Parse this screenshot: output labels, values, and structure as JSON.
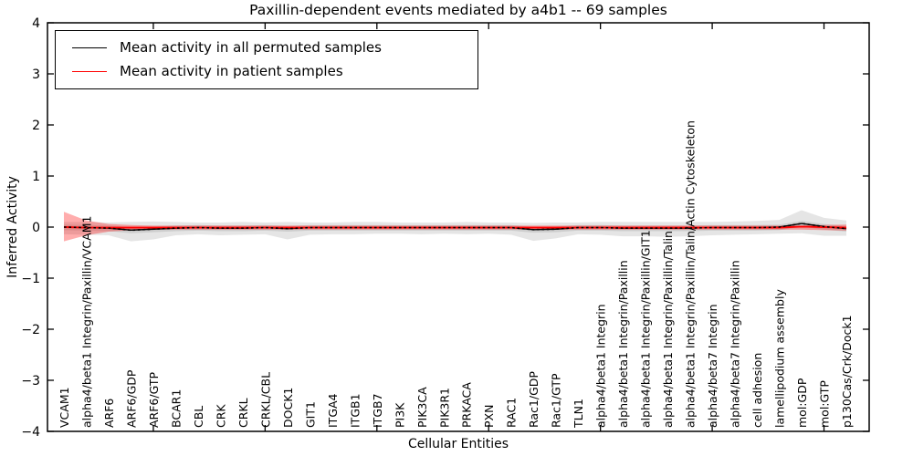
{
  "chart_data": {
    "type": "line",
    "title": "Paxillin-dependent events mediated by a4b1 -- 69 samples",
    "xlabel": "Cellular Entities",
    "ylabel": "Inferred Activity",
    "ylim": [
      -4,
      4
    ],
    "ytick_values": [
      4,
      3,
      2,
      1,
      0,
      -1,
      -2,
      -3,
      -4
    ],
    "ytick_labels": [
      "4",
      "3",
      "2",
      "1",
      "0",
      "−1",
      "−2",
      "−3",
      "−4"
    ],
    "xtick_indices": [
      4,
      9,
      14,
      19,
      24,
      29,
      34
    ],
    "grid": false,
    "legend_position": "upper-left",
    "legend": [
      {
        "label": "Mean activity in all permuted samples",
        "color": "#000000"
      },
      {
        "label": "Mean activity in patient samples",
        "color": "#ff0000"
      }
    ],
    "categories": [
      "VCAM1",
      "alpha4/beta1 Integrin/Paxillin/VCAM1",
      "ARF6",
      "ARF6/GDP",
      "ARF6/GTP",
      "BCAR1",
      "CBL",
      "CRK",
      "CRKL",
      "CRKL/CBL",
      "DOCK1",
      "GIT1",
      "ITGA4",
      "ITGB1",
      "ITGB7",
      "PI3K",
      "PIK3CA",
      "PIK3R1",
      "PRKACA",
      "PXN",
      "RAC1",
      "Rac1/GDP",
      "Rac1/GTP",
      "TLN1",
      "alpha4/beta1 Integrin",
      "alpha4/beta1 Integrin/Paxillin",
      "alpha4/beta1 Integrin/Paxillin/GIT1",
      "alpha4/beta1 Integrin/Paxillin/Talin",
      "alpha4/beta1 Integrin/Paxillin/Talin/Actin Cytoskeleton",
      "alpha4/beta7 Integrin",
      "alpha4/beta7 Integrin/Paxillin",
      "cell adhesion",
      "lamellipodium assembly",
      "mol:GDP",
      "mol:GTP",
      "p130Cas/Crk/Dock1"
    ],
    "series": [
      {
        "name": "Mean activity in all permuted samples",
        "color": "#000000",
        "style": "dashed-over-solid",
        "values": [
          0.0,
          -0.01,
          -0.02,
          -0.06,
          -0.04,
          -0.02,
          -0.01,
          -0.02,
          -0.02,
          -0.01,
          -0.03,
          -0.01,
          -0.01,
          -0.01,
          -0.01,
          -0.01,
          -0.01,
          -0.01,
          -0.01,
          -0.01,
          -0.01,
          -0.05,
          -0.04,
          -0.01,
          -0.01,
          -0.02,
          -0.02,
          -0.02,
          -0.02,
          -0.01,
          -0.01,
          -0.01,
          0.0,
          0.07,
          0.01,
          -0.03
        ]
      },
      {
        "name": "Mean activity in patient samples",
        "color": "#ff0000",
        "style": "solid",
        "values": [
          0.0,
          -0.01,
          -0.01,
          -0.01,
          -0.01,
          -0.01,
          -0.01,
          -0.01,
          -0.01,
          -0.01,
          -0.01,
          -0.01,
          -0.01,
          -0.01,
          -0.01,
          -0.01,
          -0.01,
          -0.01,
          -0.01,
          -0.01,
          -0.01,
          -0.01,
          -0.01,
          -0.01,
          -0.01,
          -0.01,
          -0.01,
          -0.01,
          -0.01,
          -0.01,
          -0.01,
          -0.01,
          -0.01,
          0.01,
          0.0,
          -0.01
        ]
      }
    ],
    "bands": [
      {
        "name": "permuted-samples-range",
        "color": "#bbbbbb",
        "opacity": 0.38,
        "upper": [
          0.1,
          0.1,
          0.09,
          0.1,
          0.11,
          0.1,
          0.09,
          0.09,
          0.1,
          0.09,
          0.1,
          0.09,
          0.09,
          0.1,
          0.1,
          0.09,
          0.09,
          0.09,
          0.1,
          0.09,
          0.09,
          0.08,
          0.09,
          0.09,
          0.1,
          0.1,
          0.1,
          0.1,
          0.1,
          0.1,
          0.11,
          0.12,
          0.14,
          0.33,
          0.18,
          0.13
        ],
        "lower": [
          -0.14,
          -0.15,
          -0.16,
          -0.28,
          -0.24,
          -0.16,
          -0.14,
          -0.16,
          -0.15,
          -0.14,
          -0.24,
          -0.15,
          -0.14,
          -0.14,
          -0.13,
          -0.13,
          -0.14,
          -0.13,
          -0.14,
          -0.13,
          -0.15,
          -0.27,
          -0.22,
          -0.14,
          -0.15,
          -0.18,
          -0.18,
          -0.19,
          -0.18,
          -0.16,
          -0.15,
          -0.14,
          -0.13,
          -0.12,
          -0.17,
          -0.17
        ]
      },
      {
        "name": "permuted-samples-inner-range",
        "color": "#999999",
        "opacity": 0.3,
        "upper": [
          0.05,
          0.04,
          0.03,
          0.0,
          0.01,
          0.03,
          0.04,
          0.03,
          0.03,
          0.04,
          0.02,
          0.04,
          0.04,
          0.04,
          0.04,
          0.04,
          0.04,
          0.04,
          0.04,
          0.04,
          0.04,
          0.0,
          0.01,
          0.04,
          0.04,
          0.03,
          0.03,
          0.03,
          0.03,
          0.04,
          0.04,
          0.04,
          0.05,
          0.12,
          0.06,
          0.02
        ],
        "lower": [
          -0.06,
          -0.07,
          -0.08,
          -0.12,
          -0.1,
          -0.08,
          -0.07,
          -0.08,
          -0.08,
          -0.07,
          -0.09,
          -0.07,
          -0.07,
          -0.07,
          -0.07,
          -0.07,
          -0.07,
          -0.07,
          -0.07,
          -0.07,
          -0.07,
          -0.11,
          -0.1,
          -0.07,
          -0.07,
          -0.08,
          -0.08,
          -0.08,
          -0.08,
          -0.07,
          -0.07,
          -0.07,
          -0.06,
          0.01,
          -0.05,
          -0.09
        ]
      },
      {
        "name": "patient-samples-range",
        "color": "#ff0000",
        "opacity": 0.32,
        "upper": [
          0.3,
          0.13,
          0.06,
          0.04,
          0.03,
          0.03,
          0.03,
          0.03,
          0.03,
          0.03,
          0.03,
          0.03,
          0.03,
          0.03,
          0.03,
          0.03,
          0.03,
          0.03,
          0.03,
          0.03,
          0.03,
          0.03,
          0.03,
          0.03,
          0.03,
          0.03,
          0.03,
          0.03,
          0.03,
          0.03,
          0.03,
          0.03,
          0.03,
          0.03,
          0.04,
          0.05
        ],
        "lower": [
          -0.28,
          -0.16,
          -0.09,
          -0.06,
          -0.05,
          -0.05,
          -0.05,
          -0.05,
          -0.05,
          -0.05,
          -0.05,
          -0.05,
          -0.05,
          -0.05,
          -0.05,
          -0.05,
          -0.05,
          -0.05,
          -0.05,
          -0.05,
          -0.05,
          -0.05,
          -0.05,
          -0.05,
          -0.05,
          -0.05,
          -0.05,
          -0.05,
          -0.05,
          -0.05,
          -0.05,
          -0.05,
          -0.05,
          -0.05,
          -0.06,
          -0.07
        ]
      }
    ]
  }
}
